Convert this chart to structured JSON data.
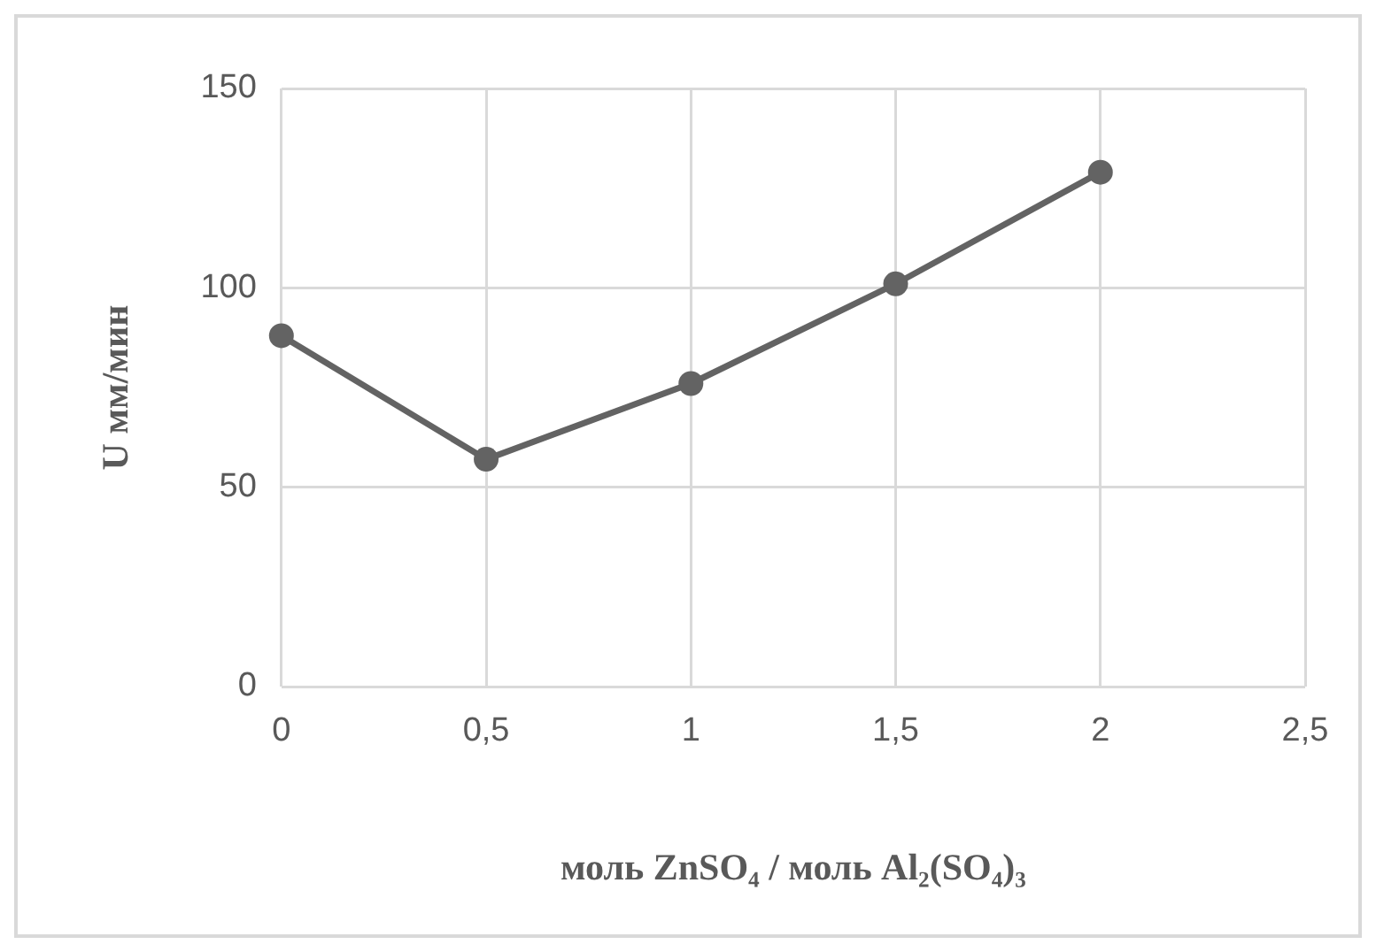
{
  "chart_data": {
    "type": "line",
    "xlabel": "моль ZnSO₄ / моль Al₂(SO₄)₃",
    "ylabel": "U мм/мин",
    "x": [
      0,
      0.5,
      1,
      1.5,
      2
    ],
    "series": [
      {
        "color": "#636363",
        "values": [
          88,
          57,
          76,
          101,
          129
        ]
      }
    ],
    "xlim": [
      0,
      2.5
    ],
    "xticks": [
      0,
      {
        "value": 0.5,
        "label": "0,5"
      },
      1,
      {
        "value": 1.5,
        "label": "1,5"
      },
      2,
      {
        "value": 2.5,
        "label": "2,5"
      }
    ],
    "ylim": [
      0,
      150
    ],
    "yticks": [
      0,
      50,
      100,
      150
    ],
    "grid": true,
    "legend": false,
    "marker": "circle",
    "line_style": "solid"
  }
}
